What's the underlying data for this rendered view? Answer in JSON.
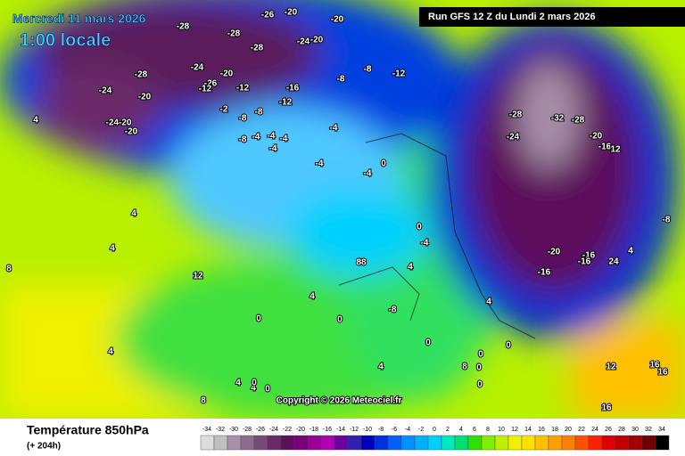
{
  "header": {
    "date": "Mercredi 11 mars 2026",
    "time": "1:00 locale",
    "run": "Run GFS 12 Z du Lundi 2 mars 2026"
  },
  "copyright": "Copyright © 2026 Meteociel.fr",
  "footer": {
    "title": "Température 850hPa",
    "lead": "(+ 204h)"
  },
  "scale": {
    "labels": [
      "-34",
      "-32",
      "-30",
      "-28",
      "-26",
      "-24",
      "-22",
      "-20",
      "-18",
      "-16",
      "-14",
      "-12",
      "-10",
      "-8",
      "-6",
      "-4",
      "-2",
      "0",
      "2",
      "4",
      "6",
      "8",
      "10",
      "12",
      "14",
      "16",
      "18",
      "20",
      "22",
      "24",
      "26",
      "28",
      "30",
      "32",
      "34"
    ],
    "colors": [
      "#dcdcdc",
      "#c0c0c0",
      "#a890a8",
      "#8c6c8c",
      "#784a78",
      "#6a2a6a",
      "#5c105c",
      "#7a007a",
      "#9a009a",
      "#b000b0",
      "#6a00a0",
      "#3020b0",
      "#0000c0",
      "#0030e0",
      "#0060ff",
      "#0090ff",
      "#00b0ff",
      "#00d0ff",
      "#00e8c0",
      "#00e070",
      "#30e000",
      "#80f000",
      "#c0f000",
      "#f0f000",
      "#ffe000",
      "#ffc000",
      "#ffa000",
      "#ff8000",
      "#ff5000",
      "#ff2000",
      "#e00000",
      "#c00000",
      "#a00000",
      "#700000",
      "#000000"
    ]
  },
  "map_labels": [
    "-28",
    "-28",
    "-28",
    "-24",
    "-20",
    "-20",
    "-26",
    "-20",
    "-28",
    "-24",
    "-20",
    "-26",
    "-12",
    "-12",
    "-24",
    "-20",
    "-24-20",
    "-20",
    "-2",
    "-8",
    "-8",
    "-12",
    "-16",
    "-8",
    "-8",
    "-12",
    "-8",
    "-4",
    "-4",
    "-4",
    "-4",
    "-4",
    "-4",
    "-4",
    "0",
    "4",
    "4",
    "8",
    "12",
    "88",
    "0",
    "-4",
    "4",
    "4",
    "-8",
    "4",
    "0",
    "0",
    "0",
    "4",
    "4",
    "8",
    "0",
    "0",
    "0",
    "0",
    "4",
    "4",
    "0",
    "0",
    "8",
    "12",
    "16",
    "16",
    "16",
    "-28",
    "-32",
    "-28",
    "-24",
    "-20",
    "-16",
    "12",
    "-8",
    "-20",
    "-16",
    "-16",
    "24",
    "-16",
    "4",
    "4"
  ]
}
